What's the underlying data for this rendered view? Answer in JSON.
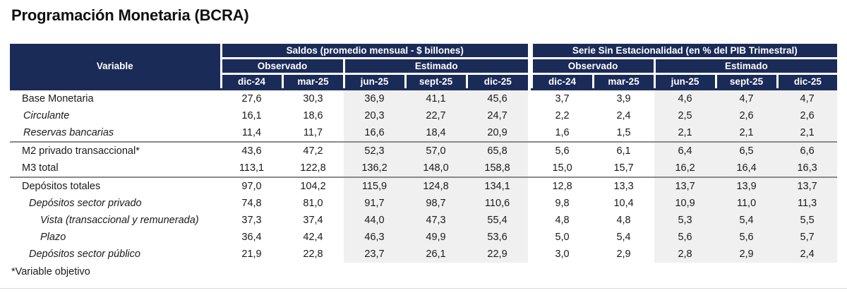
{
  "title": "Programación Monetaria (BCRA)",
  "footnote": "*Variable objetivo",
  "colors": {
    "header_bg": "#1B2B58",
    "estimado_bg": "#F0F0F0",
    "separator_line": "#8A8A8A",
    "body_text": "#1A1A1A"
  },
  "table": {
    "variable_header": "Variable",
    "groups": [
      {
        "label": "Saldos (promedio mensual - $ billones)",
        "observado_label": "Observado",
        "estimado_label": "Estimado",
        "months": [
          "dic-24",
          "mar-25",
          "jun-25",
          "sept-25",
          "dic-25"
        ]
      },
      {
        "label": "Serie Sin Estacionalidad (en % del PIB Trimestral)",
        "observado_label": "Observado",
        "estimado_label": "Estimado",
        "months": [
          "dic-24",
          "mar-25",
          "jun-25",
          "sept-25",
          "dic-25"
        ]
      }
    ],
    "rows": [
      {
        "label": "Base Monetaria",
        "style": "plain",
        "saldos": [
          "27,6",
          "30,3",
          "36,9",
          "41,1",
          "45,6"
        ],
        "serie": [
          "3,7",
          "3,9",
          "4,6",
          "4,7",
          "4,7"
        ],
        "separator_below": false
      },
      {
        "label": "Circulante",
        "style": "italic",
        "saldos": [
          "16,1",
          "18,6",
          "20,3",
          "22,7",
          "24,7"
        ],
        "serie": [
          "2,2",
          "2,4",
          "2,5",
          "2,6",
          "2,6"
        ],
        "separator_below": false
      },
      {
        "label": "Reservas bancarias",
        "style": "italic",
        "saldos": [
          "11,4",
          "11,7",
          "16,6",
          "18,4",
          "20,9"
        ],
        "serie": [
          "1,6",
          "1,5",
          "2,1",
          "2,1",
          "2,1"
        ],
        "separator_below": true
      },
      {
        "label": "M2 privado transaccional*",
        "style": "plain",
        "saldos": [
          "43,6",
          "47,2",
          "52,3",
          "57,0",
          "65,8"
        ],
        "serie": [
          "5,6",
          "6,1",
          "6,4",
          "6,5",
          "6,6"
        ],
        "separator_below": false
      },
      {
        "label": "M3 total",
        "style": "plain",
        "saldos": [
          "113,1",
          "122,8",
          "136,2",
          "148,0",
          "158,8"
        ],
        "serie": [
          "15,0",
          "15,7",
          "16,2",
          "16,4",
          "16,3"
        ],
        "separator_below": true
      },
      {
        "label": "Depósitos totales",
        "style": "plain",
        "saldos": [
          "97,0",
          "104,2",
          "115,9",
          "124,8",
          "134,1"
        ],
        "serie": [
          "12,8",
          "13,3",
          "13,7",
          "13,9",
          "13,7"
        ],
        "separator_below": false
      },
      {
        "label": "Depósitos sector privado",
        "style": "indent1",
        "saldos": [
          "74,8",
          "81,0",
          "91,7",
          "98,7",
          "110,6"
        ],
        "serie": [
          "9,8",
          "10,4",
          "10,9",
          "11,0",
          "11,3"
        ],
        "separator_below": false
      },
      {
        "label": "Vista (transaccional y remunerada)",
        "style": "indent2",
        "saldos": [
          "37,3",
          "37,4",
          "44,0",
          "47,3",
          "55,4"
        ],
        "serie": [
          "4,8",
          "4,8",
          "5,3",
          "5,4",
          "5,5"
        ],
        "separator_below": false
      },
      {
        "label": "Plazo",
        "style": "indent2",
        "saldos": [
          "36,4",
          "42,4",
          "46,3",
          "49,9",
          "53,6"
        ],
        "serie": [
          "5,0",
          "5,4",
          "5,6",
          "5,6",
          "5,7"
        ],
        "separator_below": false
      },
      {
        "label": "Depósitos sector público",
        "style": "indent1",
        "saldos": [
          "21,9",
          "22,8",
          "23,7",
          "26,1",
          "22,9"
        ],
        "serie": [
          "3,0",
          "2,9",
          "2,8",
          "2,9",
          "2,4"
        ],
        "separator_below": false
      }
    ]
  }
}
